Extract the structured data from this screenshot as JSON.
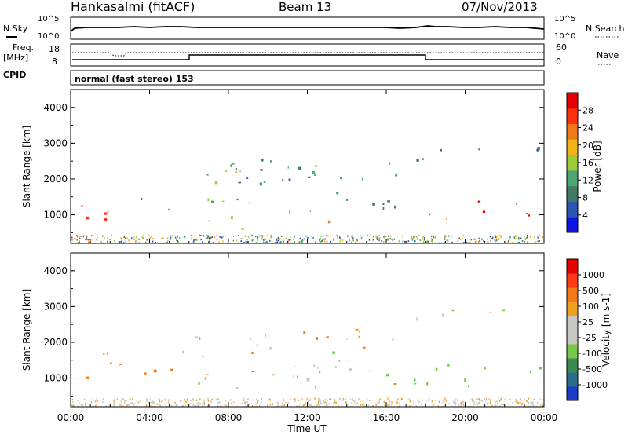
{
  "header": {
    "station": "Hankasalmi (fitACF)",
    "beam": "Beam 13",
    "date": "07/Nov/2013"
  },
  "noise_panel": {
    "left_label": "N.Sky",
    "right_label": "N.Search",
    "ticks_left": [
      "10^5",
      "10^0"
    ],
    "ticks_right": [
      "10^5",
      "10^0"
    ]
  },
  "freq_panel": {
    "left_label_1": "Freq.",
    "left_label_2": "[MHz]",
    "cpid_label": "CPID",
    "left_ticks": [
      "18",
      "8"
    ],
    "right_ticks": [
      "60",
      "0"
    ],
    "right_label": "Nave",
    "cpid_text": "normal (fast stereo) 153"
  },
  "time_axis": {
    "label": "Time UT",
    "ticks": [
      "00:00",
      "04:00",
      "08:00",
      "12:00",
      "16:00",
      "20:00",
      "00:00"
    ]
  },
  "chart_data": [
    {
      "type": "heatmap",
      "quantity": "Power",
      "ylabel": "Slant Range [km]",
      "y_ticks": [
        1000,
        2000,
        3000,
        4000
      ],
      "ylim": [
        200,
        4500
      ],
      "x_range_hours": [
        0,
        24
      ],
      "colorbar": {
        "label": "Power [dB]",
        "ticks": [
          "28",
          "24",
          "20",
          "16",
          "12",
          "8",
          "4"
        ],
        "colors": [
          "#0a16e0",
          "#2a55b0",
          "#3f7a62",
          "#4aa86e",
          "#9fca3a",
          "#f0b318",
          "#f07a1a",
          "#ff3010",
          "#e80000"
        ]
      },
      "echo_regions": [
        {
          "t": [
            0.3,
            2.4
          ],
          "r": [
            700,
            1900
          ],
          "power": 24
        },
        {
          "t": [
            2.4,
            5.5
          ],
          "r": [
            1100,
            1500
          ],
          "power": 26
        },
        {
          "t": [
            5.8,
            10.5
          ],
          "r": [
            600,
            2500
          ],
          "power": 14
        },
        {
          "t": [
            7.5,
            11.5
          ],
          "r": [
            1700,
            2600
          ],
          "power": 8
        },
        {
          "t": [
            10.5,
            16.5
          ],
          "r": [
            900,
            2500
          ],
          "power": 12
        },
        {
          "t": [
            12.0,
            13.5
          ],
          "r": [
            700,
            900
          ],
          "power": 24
        },
        {
          "t": [
            17.5,
            19.5
          ],
          "r": [
            800,
            1300
          ],
          "power": 27
        },
        {
          "t": [
            20.5,
            23.8
          ],
          "r": [
            700,
            1400
          ],
          "power": 28
        },
        {
          "t": [
            17.5,
            23.8
          ],
          "r": [
            2500,
            3000
          ],
          "power": 6
        }
      ]
    },
    {
      "type": "heatmap",
      "quantity": "Velocity",
      "ylabel": "Slant Range [km]",
      "y_ticks": [
        1000,
        2000,
        3000,
        4000
      ],
      "ylim": [
        200,
        4500
      ],
      "x_range_hours": [
        0,
        24
      ],
      "colorbar": {
        "label": "Velocity [m s-1]",
        "ticks": [
          "1000",
          "500",
          "100",
          "25",
          "-25",
          "-100",
          "-500",
          "-1000"
        ],
        "colors": [
          "#1a3cc8",
          "#2a6f8a",
          "#3a8a52",
          "#78c84a",
          "#c8c8c0",
          "#c8c8c0",
          "#f0a020",
          "#f07a18",
          "#ff3a14",
          "#e80000"
        ]
      },
      "echo_regions": [
        {
          "t": [
            0.3,
            2.4
          ],
          "r": [
            900,
            1900
          ],
          "velocity": -200
        },
        {
          "t": [
            2.4,
            5.5
          ],
          "r": [
            1100,
            1700
          ],
          "velocity": -300
        },
        {
          "t": [
            5.5,
            16.5
          ],
          "r": [
            700,
            2400
          ],
          "velocity": 0
        },
        {
          "t": [
            11.0,
            13.0
          ],
          "r": [
            1700,
            2300
          ],
          "velocity": -400
        },
        {
          "t": [
            16.0,
            23.8
          ],
          "r": [
            800,
            1500
          ],
          "velocity": 300
        },
        {
          "t": [
            17.5,
            23.8
          ],
          "r": [
            2600,
            3000
          ],
          "velocity": 0
        }
      ]
    }
  ]
}
